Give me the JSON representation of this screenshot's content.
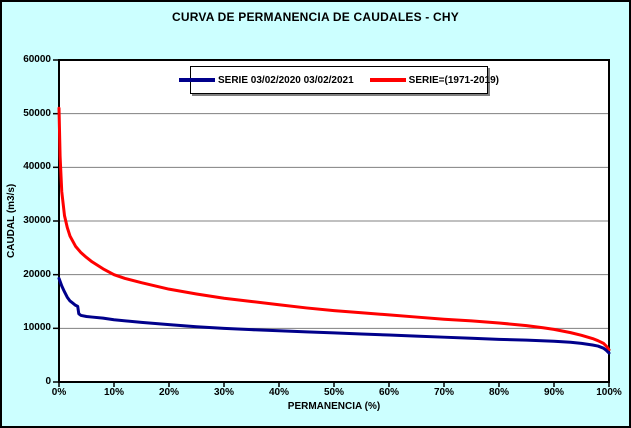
{
  "window": {
    "title": "CURVA DE PERMANENCIA DE CAUDALES - CHY"
  },
  "colors": {
    "background": "#CCFFFF",
    "plot_background": "#FFFFFF",
    "gridline": "#808080",
    "frame": "#000000",
    "series_current": "#00008B",
    "series_historic": "#FF0000"
  },
  "chart_data": {
    "type": "line",
    "title": "CURVA DE PERMANENCIA DE CAUDALES - CHY",
    "xlabel": "PERMANENCIA (%)",
    "ylabel": "CAUDAL (m3/s)",
    "xlim": [
      0,
      100
    ],
    "ylim": [
      0,
      60000
    ],
    "x_tick_labels": [
      "0%",
      "10%",
      "20%",
      "30%",
      "40%",
      "50%",
      "60%",
      "70%",
      "80%",
      "90%",
      "100%"
    ],
    "y_tick_labels": [
      "0",
      "10000",
      "20000",
      "30000",
      "40000",
      "50000",
      "60000"
    ],
    "grid": "horizontal",
    "legend_position": "top-center-inside",
    "series": [
      {
        "name": "SERIE 03/02/2020 03/02/2021",
        "color": "#00008B",
        "x": [
          0,
          0.5,
          1,
          1.5,
          2,
          2.5,
          3,
          3.4,
          3.6,
          4,
          5,
          6,
          8,
          10,
          15,
          20,
          25,
          30,
          35,
          40,
          45,
          50,
          55,
          60,
          65,
          70,
          75,
          80,
          85,
          90,
          93,
          95,
          97,
          98,
          99,
          99.5,
          100
        ],
        "y": [
          19300,
          17900,
          16800,
          15800,
          15100,
          14700,
          14300,
          14100,
          12700,
          12400,
          12200,
          12100,
          11900,
          11600,
          11100,
          10700,
          10300,
          10000,
          9750,
          9550,
          9350,
          9150,
          8950,
          8750,
          8550,
          8350,
          8150,
          7950,
          7800,
          7600,
          7400,
          7200,
          6900,
          6700,
          6300,
          5900,
          5400
        ]
      },
      {
        "name": "SERIE=(1971-2019)",
        "color": "#FF0000",
        "x": [
          0,
          0.2,
          0.5,
          1,
          1.5,
          2,
          3,
          4,
          5,
          6,
          8,
          10,
          12,
          15,
          20,
          25,
          30,
          35,
          40,
          45,
          50,
          55,
          60,
          65,
          70,
          75,
          80,
          85,
          88,
          90,
          93,
          95,
          97,
          98,
          99,
          99.5,
          100
        ],
        "y": [
          51000,
          42000,
          35500,
          31000,
          28800,
          27200,
          25300,
          24100,
          23200,
          22400,
          21100,
          20000,
          19300,
          18500,
          17300,
          16400,
          15600,
          15000,
          14400,
          13800,
          13300,
          12900,
          12500,
          12100,
          11700,
          11400,
          11000,
          10500,
          10100,
          9800,
          9200,
          8700,
          8100,
          7700,
          7200,
          6700,
          6000
        ]
      }
    ]
  }
}
